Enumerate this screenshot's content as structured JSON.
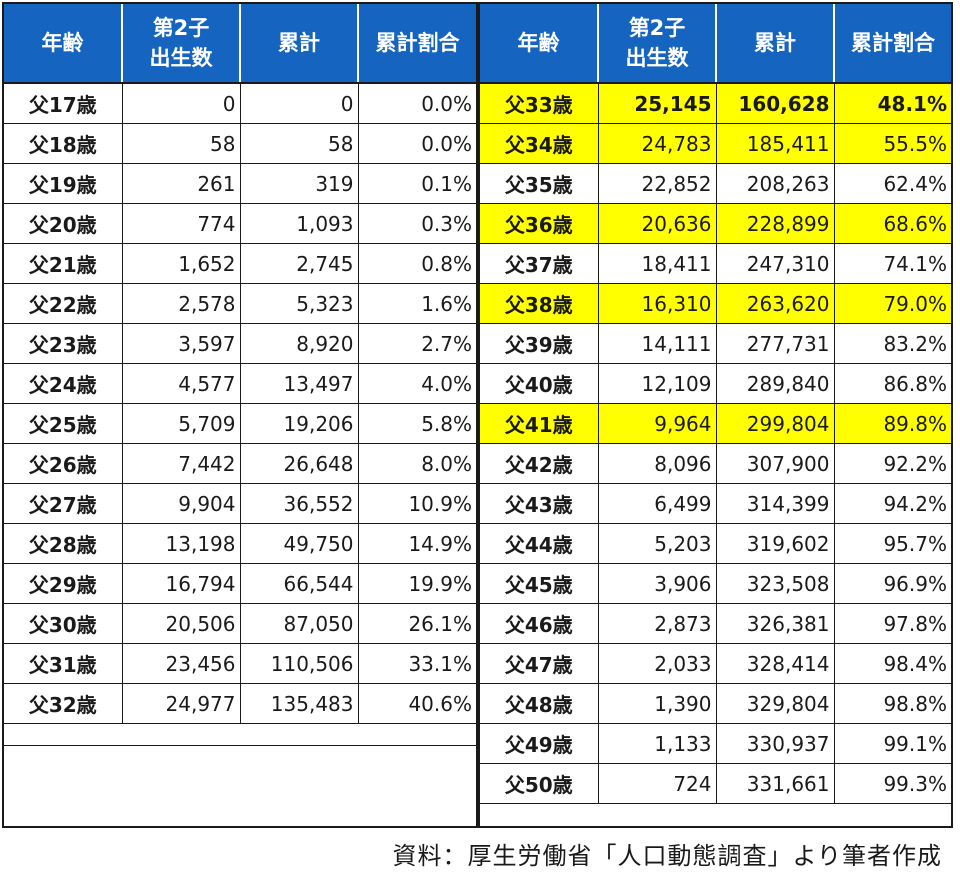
{
  "headers": {
    "age": "年齢",
    "births_line1": "第2子",
    "births_line2": "出生数",
    "cumulative": "累計",
    "ratio": "累計割合"
  },
  "left_rows": [
    {
      "age": "父17歳",
      "births": "0",
      "cumulative": "0",
      "ratio": "0.0%"
    },
    {
      "age": "父18歳",
      "births": "58",
      "cumulative": "58",
      "ratio": "0.0%"
    },
    {
      "age": "父19歳",
      "births": "261",
      "cumulative": "319",
      "ratio": "0.1%"
    },
    {
      "age": "父20歳",
      "births": "774",
      "cumulative": "1,093",
      "ratio": "0.3%"
    },
    {
      "age": "父21歳",
      "births": "1,652",
      "cumulative": "2,745",
      "ratio": "0.8%"
    },
    {
      "age": "父22歳",
      "births": "2,578",
      "cumulative": "5,323",
      "ratio": "1.6%"
    },
    {
      "age": "父23歳",
      "births": "3,597",
      "cumulative": "8,920",
      "ratio": "2.7%"
    },
    {
      "age": "父24歳",
      "births": "4,577",
      "cumulative": "13,497",
      "ratio": "4.0%"
    },
    {
      "age": "父25歳",
      "births": "5,709",
      "cumulative": "19,206",
      "ratio": "5.8%"
    },
    {
      "age": "父26歳",
      "births": "7,442",
      "cumulative": "26,648",
      "ratio": "8.0%"
    },
    {
      "age": "父27歳",
      "births": "9,904",
      "cumulative": "36,552",
      "ratio": "10.9%"
    },
    {
      "age": "父28歳",
      "births": "13,198",
      "cumulative": "49,750",
      "ratio": "14.9%"
    },
    {
      "age": "父29歳",
      "births": "16,794",
      "cumulative": "66,544",
      "ratio": "19.9%"
    },
    {
      "age": "父30歳",
      "births": "20,506",
      "cumulative": "87,050",
      "ratio": "26.1%"
    },
    {
      "age": "父31歳",
      "births": "23,456",
      "cumulative": "110,506",
      "ratio": "33.1%"
    },
    {
      "age": "父32歳",
      "births": "24,977",
      "cumulative": "135,483",
      "ratio": "40.6%"
    }
  ],
  "right_rows": [
    {
      "age": "父33歳",
      "births": "25,145",
      "cumulative": "160,628",
      "ratio": "48.1%",
      "highlight": true,
      "bold": true
    },
    {
      "age": "父34歳",
      "births": "24,783",
      "cumulative": "185,411",
      "ratio": "55.5%",
      "highlight": true
    },
    {
      "age": "父35歳",
      "births": "22,852",
      "cumulative": "208,263",
      "ratio": "62.4%"
    },
    {
      "age": "父36歳",
      "births": "20,636",
      "cumulative": "228,899",
      "ratio": "68.6%",
      "highlight": true
    },
    {
      "age": "父37歳",
      "births": "18,411",
      "cumulative": "247,310",
      "ratio": "74.1%"
    },
    {
      "age": "父38歳",
      "births": "16,310",
      "cumulative": "263,620",
      "ratio": "79.0%",
      "highlight": true
    },
    {
      "age": "父39歳",
      "births": "14,111",
      "cumulative": "277,731",
      "ratio": "83.2%"
    },
    {
      "age": "父40歳",
      "births": "12,109",
      "cumulative": "289,840",
      "ratio": "86.8%"
    },
    {
      "age": "父41歳",
      "births": "9,964",
      "cumulative": "299,804",
      "ratio": "89.8%",
      "highlight": true
    },
    {
      "age": "父42歳",
      "births": "8,096",
      "cumulative": "307,900",
      "ratio": "92.2%"
    },
    {
      "age": "父43歳",
      "births": "6,499",
      "cumulative": "314,399",
      "ratio": "94.2%"
    },
    {
      "age": "父44歳",
      "births": "5,203",
      "cumulative": "319,602",
      "ratio": "95.7%"
    },
    {
      "age": "父45歳",
      "births": "3,906",
      "cumulative": "323,508",
      "ratio": "96.9%"
    },
    {
      "age": "父46歳",
      "births": "2,873",
      "cumulative": "326,381",
      "ratio": "97.8%"
    },
    {
      "age": "父47歳",
      "births": "2,033",
      "cumulative": "328,414",
      "ratio": "98.4%"
    },
    {
      "age": "父48歳",
      "births": "1,390",
      "cumulative": "329,804",
      "ratio": "98.8%"
    },
    {
      "age": "父49歳",
      "births": "1,133",
      "cumulative": "330,937",
      "ratio": "99.1%"
    },
    {
      "age": "父50歳",
      "births": "724",
      "cumulative": "331,661",
      "ratio": "99.3%"
    }
  ],
  "highlight_color": "#ffff00",
  "header_color": "#1565c0",
  "source": "資料：厚生労働省「人口動態調査」より筆者作成"
}
